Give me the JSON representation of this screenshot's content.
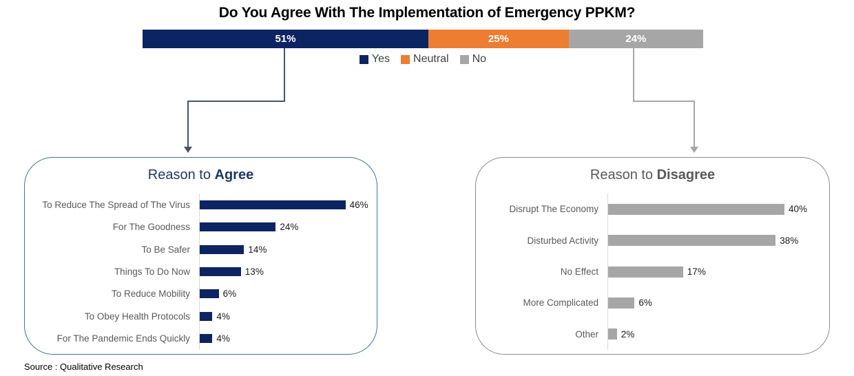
{
  "page": {
    "title": "Do You Agree With The Implementation of Emergency PPKM?",
    "source_note": "Source : Qualitative Research"
  },
  "colors": {
    "yes_navy": "#0D2463",
    "neutral_orange": "#ED7D31",
    "no_gray": "#A6A6A6",
    "agree_title": "#1F3864",
    "disagree_title": "#595959",
    "agree_connector": "#44546A",
    "disagree_connector": "#A6A6A6"
  },
  "stacked_bar": {
    "segments": [
      {
        "name": "Yes",
        "label": "51%",
        "value": 51,
        "color": "#0D2463"
      },
      {
        "name": "Neutral",
        "label": "25%",
        "value": 25,
        "color": "#ED7D31"
      },
      {
        "name": "No",
        "label": "24%",
        "value": 24,
        "color": "#A6A6A6"
      }
    ]
  },
  "legend": {
    "items": [
      {
        "label": "Yes",
        "color": "#0D2463"
      },
      {
        "label": "Neutral",
        "color": "#ED7D31"
      },
      {
        "label": "No",
        "color": "#A6A6A6"
      }
    ]
  },
  "agree_panel": {
    "title_prefix": "Reason to ",
    "title_emphasis": "Agree",
    "bar_color": "#0D2463",
    "rows": [
      {
        "label": "To Reduce The Spread of The Virus",
        "value": 46,
        "value_label": "46%"
      },
      {
        "label": "For The Goodness",
        "value": 24,
        "value_label": "24%"
      },
      {
        "label": "To Be Safer",
        "value": 14,
        "value_label": "14%"
      },
      {
        "label": "Things To Do Now",
        "value": 13,
        "value_label": "13%"
      },
      {
        "label": "To Reduce Mobility",
        "value": 6,
        "value_label": "6%"
      },
      {
        "label": "To Obey Health Protocols",
        "value": 4,
        "value_label": "4%"
      },
      {
        "label": "For The Pandemic Ends Quickly",
        "value": 4,
        "value_label": "4%"
      }
    ]
  },
  "disagree_panel": {
    "title_prefix": "Reason to ",
    "title_emphasis": "Disagree",
    "bar_color": "#A6A6A6",
    "rows": [
      {
        "label": "Disrupt The Economy",
        "value": 40,
        "value_label": "40%"
      },
      {
        "label": "Disturbed Activity",
        "value": 38,
        "value_label": "38%"
      },
      {
        "label": "No Effect",
        "value": 17,
        "value_label": "17%"
      },
      {
        "label": "More Complicated",
        "value": 6,
        "value_label": "6%"
      },
      {
        "label": "Other",
        "value": 2,
        "value_label": "2%"
      }
    ]
  },
  "chart_data": [
    {
      "type": "bar",
      "subtype": "stacked-horizontal",
      "title": "Do You Agree With The Implementation of Emergency PPKM?",
      "categories": [
        "Yes",
        "Neutral",
        "No"
      ],
      "values": [
        51,
        25,
        24
      ],
      "unit": "%",
      "colors": [
        "#0D2463",
        "#ED7D31",
        "#A6A6A6"
      ],
      "legend_position": "bottom",
      "data_labels": [
        "51%",
        "25%",
        "24%"
      ]
    },
    {
      "type": "bar",
      "subtype": "horizontal",
      "title": "Reason to Agree",
      "categories": [
        "To Reduce The Spread of The Virus",
        "For The Goodness",
        "To Be Safer",
        "Things To Do Now",
        "To Reduce Mobility",
        "To Obey Health Protocols",
        "For The Pandemic Ends Quickly"
      ],
      "values": [
        46,
        24,
        14,
        13,
        6,
        4,
        4
      ],
      "unit": "%",
      "bar_color": "#0D2463",
      "xlim": [
        0,
        50
      ],
      "grid": false,
      "data_labels": [
        "46%",
        "24%",
        "14%",
        "13%",
        "6%",
        "4%",
        "4%"
      ]
    },
    {
      "type": "bar",
      "subtype": "horizontal",
      "title": "Reason to Disagree",
      "categories": [
        "Disrupt The Economy",
        "Disturbed Activity",
        "No Effect",
        "More Complicated",
        "Other"
      ],
      "values": [
        40,
        38,
        17,
        6,
        2
      ],
      "unit": "%",
      "bar_color": "#A6A6A6",
      "xlim": [
        0,
        45
      ],
      "grid": false,
      "data_labels": [
        "40%",
        "38%",
        "17%",
        "6%",
        "2%"
      ]
    }
  ]
}
